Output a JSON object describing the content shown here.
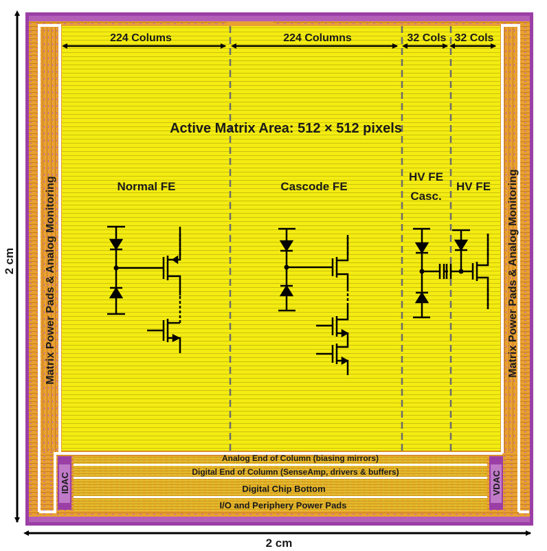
{
  "dimensions": {
    "width_label": "2 cm",
    "height_label": "2 cm"
  },
  "matrix": {
    "title": "Active Matrix Area: 512 × 512 pixels",
    "sections": [
      {
        "id": "normal",
        "columns_label": "224 Colums",
        "fe_label": "Normal FE",
        "fe_label_line2": ""
      },
      {
        "id": "cascode",
        "columns_label": "224 Columns",
        "fe_label": "Cascode FE",
        "fe_label_line2": ""
      },
      {
        "id": "hv-casc",
        "columns_label": "32 Cols",
        "fe_label": "HV FE",
        "fe_label_line2": "Casc."
      },
      {
        "id": "hv",
        "columns_label": "32 Cols",
        "fe_label": "HV FE",
        "fe_label_line2": ""
      }
    ]
  },
  "side_labels": {
    "left": "Matrix Power Pads & Analog Monitoring",
    "right": "Matrix Power Pads & Analog Monitoring"
  },
  "bottom_blocks": {
    "analog_eoc": "Analog End of Column (biasing mirrors)",
    "digital_eoc": "Digital End of Column (SenseAmp, drivers & buffers)",
    "digital_bottom": "Digital Chip Bottom",
    "io_pads": "I/O and Periphery Power Pads",
    "idac": "IDAC",
    "vdac": "VDAC"
  },
  "colors": {
    "matrix_fill": "#f4ec12",
    "periphery_orange": "#e8a132",
    "periphery_purple": "#9b3fa6",
    "frame_white": "#ffffff",
    "circuit_black": "#000000",
    "divider_gray": "#6b6b70"
  }
}
